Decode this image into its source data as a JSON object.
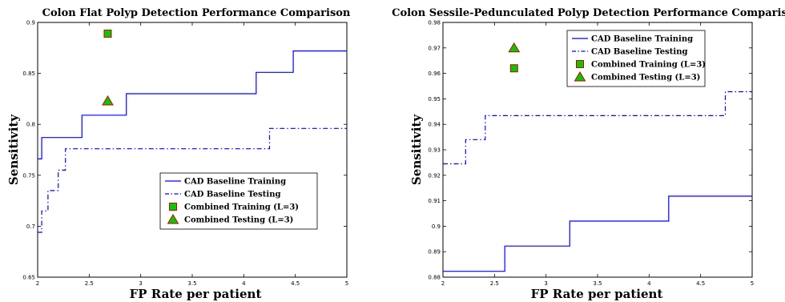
{
  "chart_data": [
    {
      "type": "line",
      "title": "Colon Flat Polyp Detection Performance Comparison",
      "xlabel": "FP Rate per patient",
      "ylabel": "Sensitivity",
      "xlim": [
        2,
        5
      ],
      "ylim": [
        0.65,
        0.9
      ],
      "xticks": [
        "2",
        "2.5",
        "3",
        "3.5",
        "4",
        "4.5",
        "5"
      ],
      "yticks": [
        "0.65",
        "0.7",
        "0.75",
        "0.8",
        "0.85",
        "0.9"
      ],
      "legend_position": "lower-right",
      "series": [
        {
          "name": "CAD Baseline Training",
          "style": "solid",
          "color": "#0000ff",
          "x": [
            2,
            2.04,
            2.04,
            2.43,
            2.43,
            2.86,
            2.86,
            4.12,
            4.12,
            4.48,
            4.48,
            5
          ],
          "y": [
            0.766,
            0.766,
            0.787,
            0.787,
            0.809,
            0.809,
            0.83,
            0.83,
            0.851,
            0.851,
            0.872,
            0.872
          ]
        },
        {
          "name": "CAD Baseline Testing",
          "style": "dashdot",
          "color": "#0000ff",
          "x": [
            2,
            2.04,
            2.04,
            2.1,
            2.1,
            2.2,
            2.2,
            2.27,
            2.27,
            2.69,
            2.69,
            4.25,
            4.25,
            5
          ],
          "y": [
            0.694,
            0.694,
            0.715,
            0.715,
            0.735,
            0.735,
            0.755,
            0.755,
            0.776,
            0.776,
            0.776,
            0.776,
            0.796,
            0.796
          ]
        },
        {
          "name": "Combined Training (L=3)",
          "style": "marker-square",
          "color": "#00cc00",
          "x": [
            2.68
          ],
          "y": [
            0.889
          ]
        },
        {
          "name": "Combined Testing (L=3)",
          "style": "marker-triangle",
          "color": "#00cc00",
          "x": [
            2.68
          ],
          "y": [
            0.823
          ]
        }
      ]
    },
    {
      "type": "line",
      "title": "Colon Sessile-Pedunculated Polyp Detection Performance Comparison",
      "xlabel": "FP Rate per patient",
      "ylabel": "Sensitivity",
      "xlim": [
        2,
        5
      ],
      "ylim": [
        0.88,
        0.98
      ],
      "xticks": [
        "2",
        "2.5",
        "3",
        "3.5",
        "4",
        "4.5",
        "5"
      ],
      "yticks": [
        "0.88",
        "0.89",
        "0.9",
        "0.91",
        "0.92",
        "0.93",
        "0.94",
        "0.95",
        "0.96",
        "0.97",
        "0.98"
      ],
      "legend_position": "top-right",
      "series": [
        {
          "name": "CAD Baseline Training",
          "style": "solid",
          "color": "#0000ff",
          "x": [
            2,
            2.6,
            2.6,
            3.23,
            3.23,
            4.19,
            4.19,
            5
          ],
          "y": [
            0.8823,
            0.8823,
            0.8922,
            0.8922,
            0.902,
            0.902,
            0.9118,
            0.9118
          ]
        },
        {
          "name": "CAD Baseline Testing",
          "style": "dashdot",
          "color": "#0000ff",
          "x": [
            2,
            2.22,
            2.22,
            2.41,
            2.41,
            4.74,
            4.74,
            5
          ],
          "y": [
            0.9245,
            0.9245,
            0.934,
            0.934,
            0.9434,
            0.9434,
            0.9528,
            0.9528
          ]
        },
        {
          "name": "Combined Training (L=3)",
          "style": "marker-square",
          "color": "#00cc00",
          "x": [
            2.69
          ],
          "y": [
            0.962
          ]
        },
        {
          "name": "Combined Testing (L=3)",
          "style": "marker-triangle",
          "color": "#00cc00",
          "x": [
            2.69
          ],
          "y": [
            0.97
          ]
        }
      ]
    }
  ]
}
